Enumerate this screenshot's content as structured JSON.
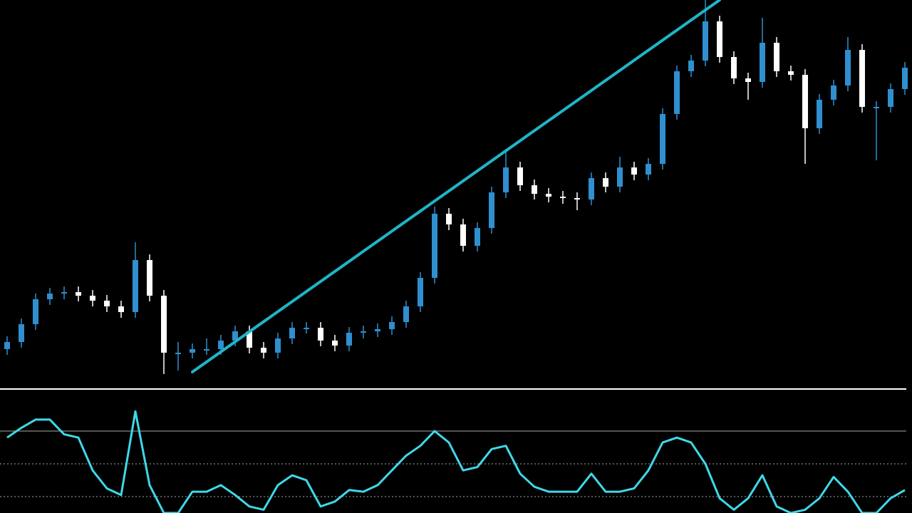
{
  "chart_data": [
    {
      "type": "candlestick",
      "open": [
        50,
        60,
        85,
        120,
        128,
        130,
        125,
        118,
        110,
        102,
        175,
        125,
        45,
        45,
        50,
        50,
        62,
        75,
        52,
        45,
        65,
        80,
        80,
        62,
        55,
        73,
        75,
        78,
        88,
        110,
        150,
        240,
        225,
        195,
        220,
        270,
        305,
        280,
        268,
        264,
        262,
        260,
        290,
        278,
        305,
        295,
        310,
        380,
        440,
        455,
        510,
        460,
        430,
        425,
        480,
        440,
        435,
        360,
        400,
        420,
        470,
        390,
        390,
        415
      ],
      "high": [
        68,
        93,
        128,
        136,
        138,
        138,
        133,
        126,
        118,
        200,
        183,
        133,
        60,
        58,
        65,
        70,
        83,
        83,
        60,
        73,
        88,
        88,
        88,
        70,
        81,
        83,
        86,
        96,
        118,
        158,
        250,
        248,
        233,
        228,
        278,
        330,
        313,
        288,
        276,
        272,
        270,
        298,
        298,
        320,
        313,
        318,
        388,
        448,
        463,
        540,
        518,
        468,
        438,
        515,
        488,
        448,
        443,
        408,
        428,
        488,
        478,
        398,
        423,
        453
      ],
      "low": [
        42,
        52,
        77,
        112,
        120,
        117,
        110,
        102,
        94,
        94,
        117,
        15,
        20,
        37,
        42,
        42,
        54,
        44,
        37,
        37,
        57,
        72,
        54,
        47,
        47,
        65,
        67,
        70,
        80,
        102,
        142,
        217,
        187,
        187,
        212,
        262,
        272,
        260,
        256,
        254,
        245,
        252,
        270,
        270,
        287,
        287,
        302,
        372,
        432,
        447,
        452,
        422,
        400,
        417,
        432,
        427,
        310,
        352,
        392,
        412,
        382,
        315,
        382,
        407
      ],
      "close": [
        60,
        85,
        120,
        128,
        130,
        125,
        118,
        110,
        102,
        175,
        125,
        45,
        45,
        50,
        50,
        62,
        75,
        52,
        45,
        65,
        80,
        80,
        62,
        55,
        73,
        75,
        78,
        88,
        110,
        150,
        240,
        225,
        195,
        220,
        270,
        305,
        280,
        268,
        264,
        262,
        260,
        290,
        278,
        305,
        295,
        310,
        380,
        440,
        455,
        510,
        460,
        430,
        425,
        480,
        440,
        435,
        360,
        400,
        420,
        470,
        390,
        390,
        415,
        445
      ],
      "up_color": "#2f8fcf",
      "down_color": "#ffffff",
      "ylim": [
        0,
        540
      ],
      "trendline": {
        "x": [
          13,
          50
        ],
        "values": [
          18,
          540
        ],
        "color": "#1fb5c8"
      }
    },
    {
      "type": "line",
      "values": [
        66,
        72,
        77,
        77,
        68,
        66,
        46,
        35,
        31,
        82,
        37,
        20,
        20,
        33,
        33,
        37,
        31,
        24,
        22,
        37,
        43,
        40,
        24,
        27,
        34,
        33,
        37,
        46,
        55,
        61,
        70,
        63,
        46,
        48,
        59,
        61,
        44,
        36,
        33,
        33,
        33,
        44,
        33,
        33,
        35,
        46,
        63,
        66,
        63,
        50,
        29,
        22,
        29,
        43,
        24,
        20,
        22,
        29,
        42,
        33,
        20,
        20,
        29,
        34
      ],
      "color": "#3fd8e8",
      "ylim": [
        20,
        90
      ],
      "levels": [
        70,
        50,
        30
      ]
    }
  ]
}
